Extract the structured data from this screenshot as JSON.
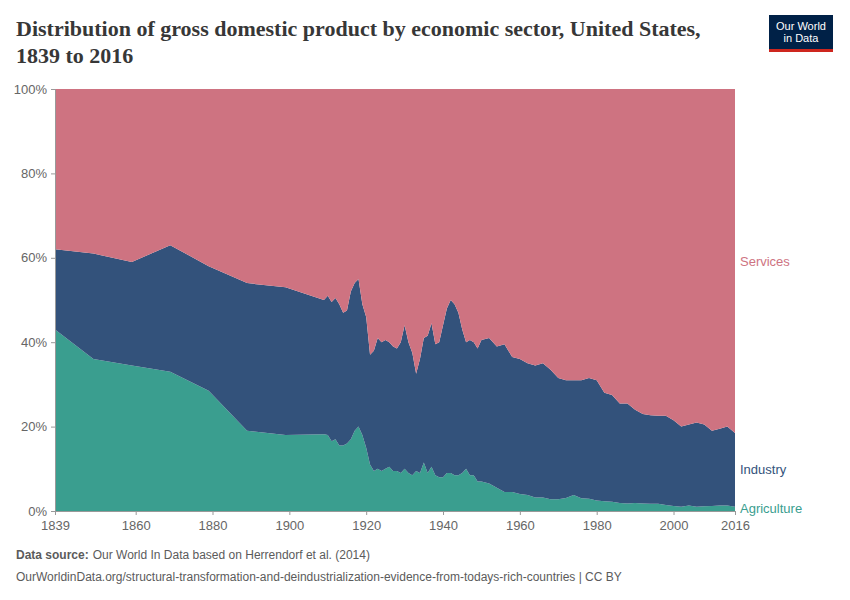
{
  "chart_data": {
    "type": "area",
    "stacked": true,
    "title": "Distribution of gross domestic product by economic sector, United States, 1839 to 2016",
    "logo": [
      "Our World",
      "in Data"
    ],
    "source_label": "Data source:",
    "source": "Our World In Data based on Herrendorf et al. (2014)",
    "footer": "OurWorldinData.org/structural-transformation-and-deindustrialization-evidence-from-todays-rich-countries | CC BY",
    "xlim": [
      1839,
      2016
    ],
    "xticks": [
      1839,
      1860,
      1880,
      1900,
      1920,
      1940,
      1960,
      1980,
      2000,
      2016
    ],
    "ylim": [
      0,
      100
    ],
    "yticks": [
      {
        "value": 0,
        "label": "0%"
      },
      {
        "value": 20,
        "label": "20%"
      },
      {
        "value": 40,
        "label": "40%"
      },
      {
        "value": 60,
        "label": "60%"
      },
      {
        "value": 80,
        "label": "80%"
      },
      {
        "value": 100,
        "label": "100%"
      }
    ],
    "x": [
      1839,
      1849,
      1859,
      1869,
      1879,
      1889,
      1899,
      1909,
      1910,
      1911,
      1912,
      1913,
      1914,
      1915,
      1916,
      1917,
      1918,
      1919,
      1920,
      1921,
      1922,
      1923,
      1924,
      1925,
      1926,
      1927,
      1928,
      1929,
      1930,
      1931,
      1932,
      1933,
      1934,
      1935,
      1936,
      1937,
      1938,
      1939,
      1940,
      1941,
      1942,
      1943,
      1944,
      1945,
      1946,
      1947,
      1948,
      1949,
      1950,
      1952,
      1954,
      1956,
      1958,
      1960,
      1962,
      1964,
      1966,
      1968,
      1970,
      1972,
      1974,
      1976,
      1978,
      1980,
      1982,
      1984,
      1986,
      1988,
      1990,
      1992,
      1994,
      1996,
      1998,
      2000,
      2002,
      2004,
      2006,
      2008,
      2010,
      2012,
      2014,
      2016
    ],
    "series": [
      {
        "name": "Agriculture",
        "color": "#3a9e8f",
        "values": [
          43,
          36,
          34.5,
          33,
          28.5,
          19,
          18,
          18.2,
          18,
          16.5,
          17,
          15.5,
          15.5,
          16,
          17,
          19,
          20,
          18,
          15,
          11,
          9.5,
          10,
          9.5,
          10,
          10.5,
          9.5,
          9.5,
          9,
          10,
          9,
          8.5,
          9.5,
          9,
          11.5,
          9,
          10.5,
          8.5,
          8,
          8,
          9,
          9,
          8.5,
          8.5,
          9,
          10,
          8.5,
          8.5,
          7,
          7,
          6.5,
          5.5,
          4.5,
          4.5,
          4,
          3.8,
          3.2,
          3.2,
          2.8,
          2.8,
          3.1,
          3.8,
          3,
          2.9,
          2.5,
          2.3,
          2.2,
          1.9,
          1.8,
          1.9,
          1.8,
          1.7,
          1.7,
          1.4,
          1.2,
          1,
          1.3,
          1,
          1.1,
          1.2,
          1.3,
          1.3,
          1
        ]
      },
      {
        "name": "Industry",
        "color": "#33527b",
        "values": [
          19,
          25,
          24.5,
          30,
          29.5,
          35,
          35,
          31.8,
          33,
          33,
          33.5,
          33.5,
          31.5,
          31.5,
          35,
          35,
          35,
          31,
          31,
          26,
          28.5,
          31,
          30.5,
          30.5,
          29.5,
          29.5,
          29,
          31,
          34,
          31,
          29,
          23,
          27,
          29.5,
          32.5,
          34,
          31,
          32,
          36,
          39,
          41,
          40.5,
          38.5,
          34,
          30,
          32,
          31.5,
          31.5,
          33.5,
          34.5,
          33.5,
          35,
          32,
          32,
          31.2,
          31.3,
          31.8,
          30.7,
          28.7,
          27.9,
          27.2,
          28,
          28.6,
          28.5,
          25.7,
          25.3,
          23.6,
          23.7,
          22.1,
          21.2,
          21,
          20.9,
          21.2,
          20.3,
          19,
          19.2,
          20,
          19.4,
          17.8,
          18.2,
          18.7,
          17.5
        ]
      },
      {
        "name": "Services",
        "color": "#ce7381",
        "values": [
          38,
          39,
          41,
          37,
          42,
          46,
          47,
          50,
          49,
          50.5,
          49.5,
          51,
          53,
          52.5,
          48,
          46,
          45,
          51,
          54,
          63,
          62,
          59,
          60,
          59.5,
          60,
          61,
          61.5,
          60,
          56,
          60,
          62.5,
          67.5,
          64,
          59,
          58.5,
          55.5,
          60.5,
          60,
          56,
          52,
          50,
          51,
          53,
          57,
          60,
          59.5,
          60,
          61.5,
          59.5,
          59,
          61,
          60.5,
          63.5,
          64,
          65,
          65.5,
          65,
          66.5,
          68.5,
          69,
          69,
          69,
          68.5,
          69,
          72,
          72.5,
          74.5,
          74.5,
          76,
          77,
          77.3,
          77.4,
          77.4,
          78.5,
          80,
          79.5,
          79,
          79.5,
          81,
          80.5,
          80,
          81.5
        ]
      }
    ]
  }
}
